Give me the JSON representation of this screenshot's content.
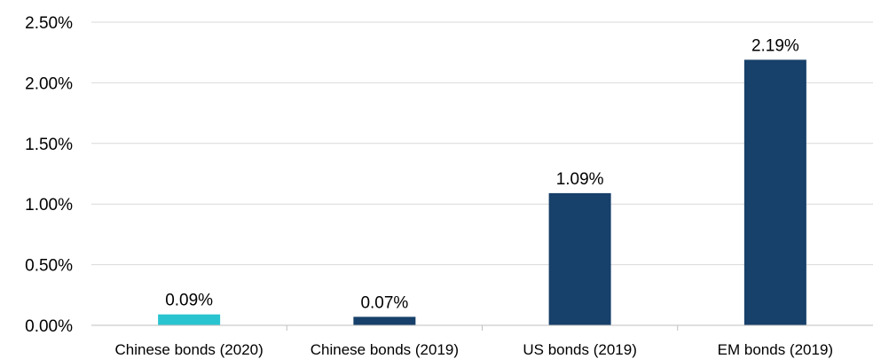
{
  "chart_data": {
    "type": "bar",
    "categories": [
      "Chinese bonds (2020)",
      "Chinese bonds (2019)",
      "US bonds (2019)",
      "EM bonds (2019)"
    ],
    "values": [
      0.09,
      0.07,
      1.09,
      2.19
    ],
    "data_labels": [
      "0.09%",
      "0.07%",
      "1.09%",
      "2.19%"
    ],
    "bar_colors": [
      "#29c4d0",
      "#17406a",
      "#17406a",
      "#17406a"
    ],
    "ylim": [
      0,
      2.5
    ],
    "yticks": [
      0,
      0.5,
      1.0,
      1.5,
      2.0,
      2.5
    ],
    "ytick_labels": [
      "0.00%",
      "0.50%",
      "1.00%",
      "1.50%",
      "2.00%",
      "2.50%"
    ],
    "grid": true,
    "title": "",
    "xlabel": "",
    "ylabel": ""
  }
}
